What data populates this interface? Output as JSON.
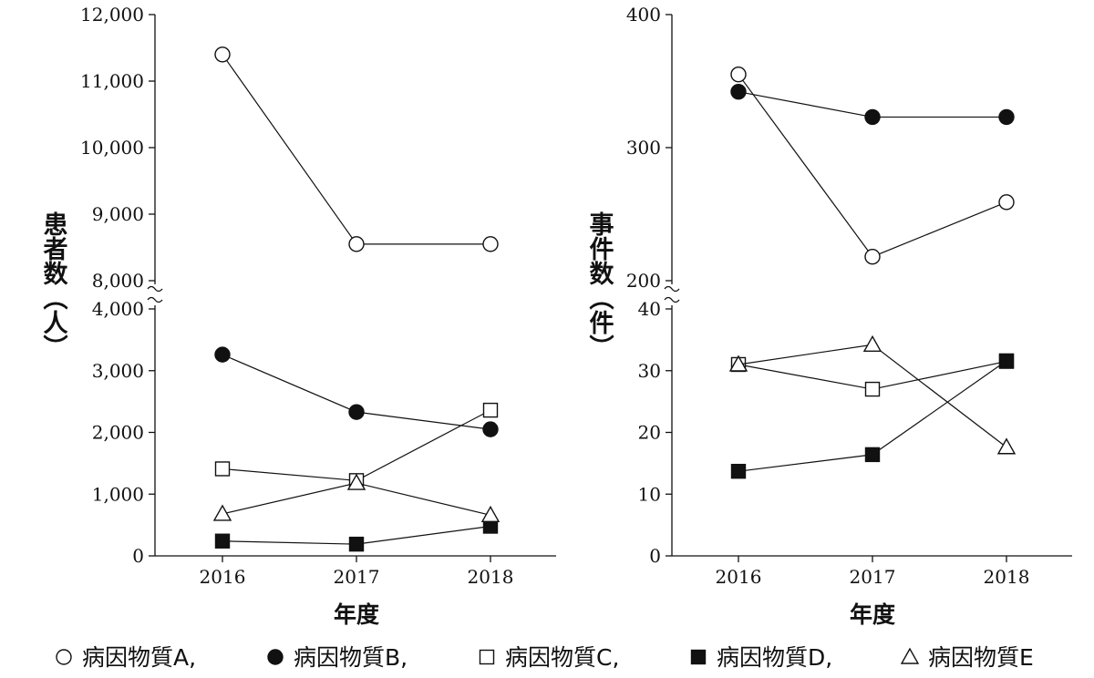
{
  "chart_data": [
    {
      "type": "line",
      "title": "",
      "xlabel": "年度",
      "ylabel": "患者数（人）",
      "x": [
        "2016",
        "2017",
        "2018"
      ],
      "axis_break": true,
      "upper_ylim": [
        8000,
        12000
      ],
      "upper_yticks": [
        "8,000",
        "9,000",
        "10,000",
        "11,000",
        "12,000"
      ],
      "lower_ylim": [
        0,
        4000
      ],
      "lower_yticks": [
        "0",
        "1,000",
        "2,000",
        "3,000",
        "4,000"
      ],
      "series": [
        {
          "name": "病因物質A",
          "marker": "open-circle",
          "values": [
            11400,
            8550,
            8550
          ]
        },
        {
          "name": "病因物質B",
          "marker": "filled-circle",
          "values": [
            3260,
            2330,
            2050
          ]
        },
        {
          "name": "病因物質C",
          "marker": "open-square",
          "values": [
            1410,
            1220,
            2360
          ]
        },
        {
          "name": "病因物質D",
          "marker": "filled-square",
          "values": [
            240,
            190,
            480
          ]
        },
        {
          "name": "病因物質E",
          "marker": "open-triangle",
          "values": [
            680,
            1180,
            660
          ]
        }
      ]
    },
    {
      "type": "line",
      "title": "",
      "xlabel": "年度",
      "ylabel": "事件数（件）",
      "x": [
        "2016",
        "2017",
        "2018"
      ],
      "axis_break": true,
      "upper_ylim": [
        200,
        400
      ],
      "upper_yticks": [
        "200",
        "300",
        "400"
      ],
      "lower_ylim": [
        0,
        40
      ],
      "lower_yticks": [
        "0",
        "10",
        "20",
        "30",
        "40"
      ],
      "series": [
        {
          "name": "病因物質A",
          "marker": "open-circle",
          "values": [
            355,
            218,
            259
          ]
        },
        {
          "name": "病因物質B",
          "marker": "filled-circle",
          "values": [
            342,
            323,
            323
          ]
        },
        {
          "name": "病因物質C",
          "marker": "open-square",
          "values": [
            31,
            27,
            31.5
          ]
        },
        {
          "name": "病因物質D",
          "marker": "filled-square",
          "values": [
            13.7,
            16.4,
            31.6
          ]
        },
        {
          "name": "病因物質E",
          "marker": "open-triangle",
          "values": [
            31,
            34.2,
            17.6
          ]
        }
      ]
    }
  ],
  "legend": {
    "placement": "bottom",
    "items": [
      {
        "marker": "open-circle",
        "label": "病因物質A",
        "sep": ","
      },
      {
        "marker": "filled-circle",
        "label": "病因物質B",
        "sep": ","
      },
      {
        "marker": "open-square",
        "label": "病因物質C",
        "sep": ","
      },
      {
        "marker": "filled-square",
        "label": "病因物質D",
        "sep": ","
      },
      {
        "marker": "open-triangle",
        "label": "病因物質E",
        "sep": ""
      }
    ]
  }
}
